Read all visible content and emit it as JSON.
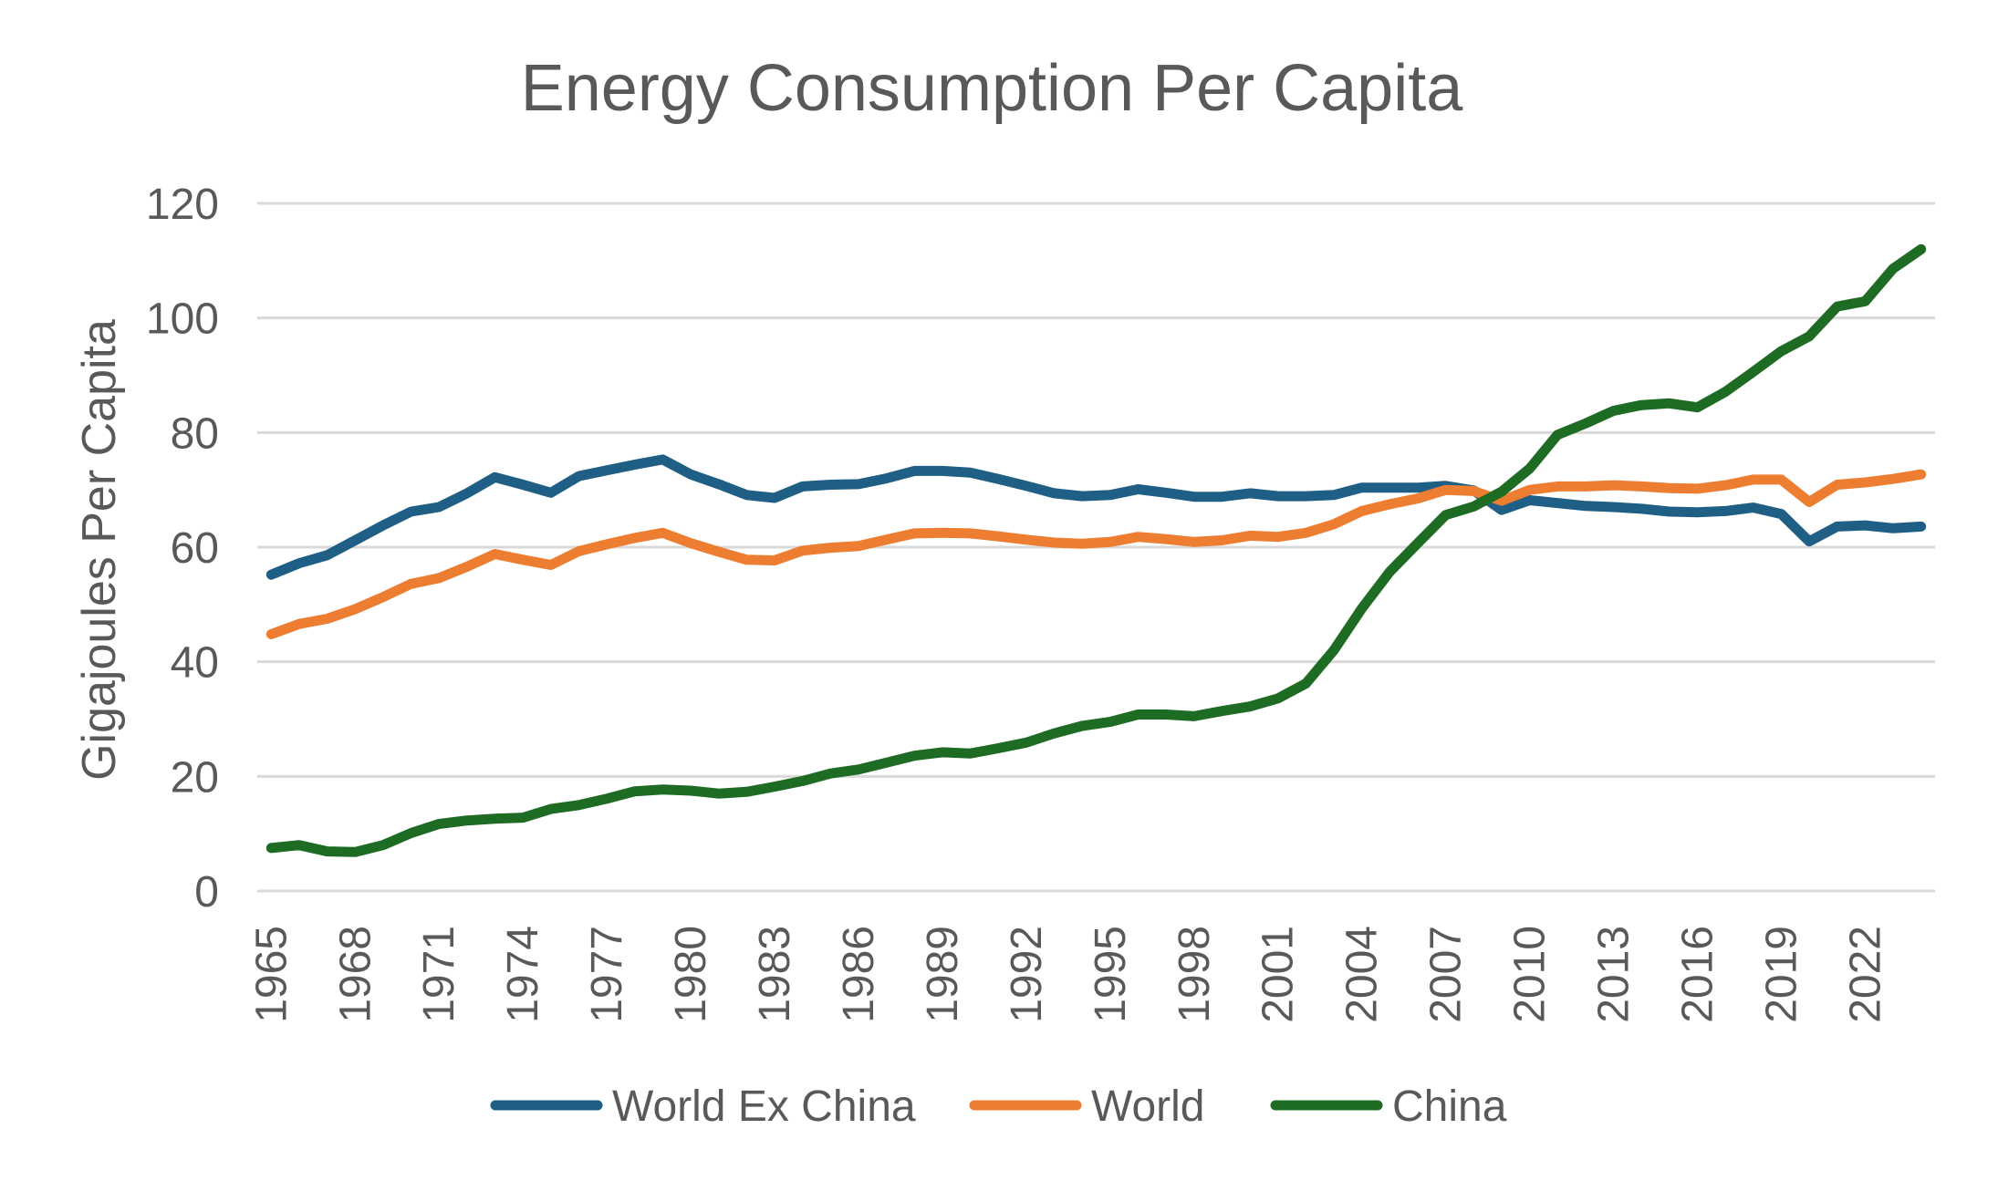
{
  "chart_data": {
    "type": "line",
    "title": "Energy Consumption Per Capita",
    "xlabel": "",
    "ylabel": "Gigajoules Per Capita",
    "ylim": [
      0,
      120
    ],
    "yticks": [
      0,
      20,
      40,
      60,
      80,
      100,
      120
    ],
    "xtick_labels": [
      "1965",
      "1968",
      "1971",
      "1974",
      "1977",
      "1980",
      "1983",
      "1986",
      "1989",
      "1992",
      "1995",
      "1998",
      "2001",
      "2004",
      "2007",
      "2010",
      "2013",
      "2016",
      "2019",
      "2022"
    ],
    "grid": "horizontal",
    "legend_position": "bottom",
    "x": [
      1965,
      1966,
      1967,
      1968,
      1969,
      1970,
      1971,
      1972,
      1973,
      1974,
      1975,
      1976,
      1977,
      1978,
      1979,
      1980,
      1981,
      1982,
      1983,
      1984,
      1985,
      1986,
      1987,
      1988,
      1989,
      1990,
      1991,
      1992,
      1993,
      1994,
      1995,
      1996,
      1997,
      1998,
      1999,
      2000,
      2001,
      2002,
      2003,
      2004,
      2005,
      2006,
      2007,
      2008,
      2009,
      2010,
      2011,
      2012,
      2013,
      2014,
      2015,
      2016,
      2017,
      2018,
      2019,
      2020,
      2021,
      2022,
      2023,
      2024
    ],
    "series": [
      {
        "name": "World Ex China",
        "color": "#1f5f86",
        "values": [
          55.2,
          57.2,
          58.6,
          61.2,
          63.8,
          66.2,
          67.0,
          69.4,
          72.2,
          70.9,
          69.5,
          72.4,
          73.4,
          74.4,
          75.3,
          72.7,
          71.0,
          69.1,
          68.6,
          70.6,
          70.9,
          71.0,
          72.0,
          73.3,
          73.3,
          73.0,
          71.9,
          70.7,
          69.4,
          68.9,
          69.1,
          70.1,
          69.5,
          68.8,
          68.8,
          69.4,
          68.9,
          68.9,
          69.1,
          70.4,
          70.4,
          70.4,
          70.7,
          69.9,
          66.5,
          68.2,
          67.7,
          67.2,
          67.0,
          66.7,
          66.2,
          66.1,
          66.3,
          66.9,
          65.8,
          61.0,
          63.6,
          63.8,
          63.3,
          63.6
        ],
        "labels": []
      },
      {
        "name": "World",
        "color": "#ed7d31",
        "values": [
          44.8,
          46.6,
          47.5,
          49.2,
          51.3,
          53.6,
          54.6,
          56.6,
          58.8,
          57.8,
          56.9,
          59.3,
          60.5,
          61.6,
          62.5,
          60.7,
          59.2,
          57.8,
          57.7,
          59.4,
          59.9,
          60.2,
          61.3,
          62.4,
          62.5,
          62.4,
          61.9,
          61.3,
          60.8,
          60.6,
          60.9,
          61.8,
          61.4,
          60.9,
          61.2,
          62.0,
          61.8,
          62.5,
          64.0,
          66.3,
          67.5,
          68.5,
          70.0,
          69.8,
          68.1,
          70.0,
          70.6,
          70.6,
          70.8,
          70.6,
          70.3,
          70.2,
          70.8,
          71.8,
          71.8,
          67.9,
          70.9,
          71.3,
          71.9,
          72.7
        ],
        "labels": []
      },
      {
        "name": "China",
        "color": "#1e6b24",
        "values": [
          7.5,
          8.0,
          6.9,
          6.8,
          8.0,
          10.1,
          11.7,
          12.3,
          12.6,
          12.8,
          14.3,
          15.0,
          16.1,
          17.4,
          17.7,
          17.5,
          17.0,
          17.3,
          18.2,
          19.2,
          20.5,
          21.2,
          22.4,
          23.6,
          24.2,
          24.0,
          24.9,
          25.9,
          27.5,
          28.8,
          29.5,
          30.8,
          30.8,
          30.5,
          31.4,
          32.2,
          33.6,
          36.2,
          42.0,
          49.3,
          55.7,
          60.7,
          65.6,
          67.1,
          69.7,
          73.7,
          79.6,
          81.6,
          83.8,
          84.8,
          85.1,
          84.4,
          87.1,
          90.6,
          94.2,
          96.8,
          102.0,
          102.9,
          108.6,
          112.0
        ],
        "labels": []
      }
    ]
  }
}
